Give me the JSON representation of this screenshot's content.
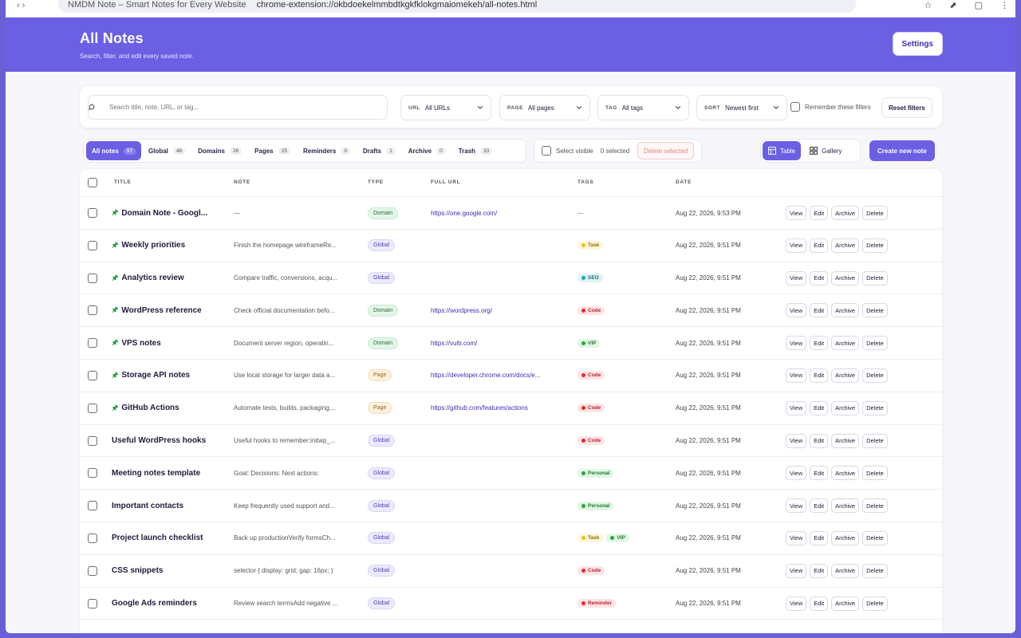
{
  "browser": {
    "tab_title": "NMDM Note – Smart Notes for Every Website",
    "url": "chrome-extension://okbdoekelmmbdtkgkfklokgmaiomekeh/all-notes.html"
  },
  "header": {
    "title": "All Notes",
    "subtitle": "Search, filter, and edit every saved note.",
    "settings_label": "Settings"
  },
  "filters": {
    "search_placeholder": "Search title, note, URL, or tag...",
    "url": {
      "label": "URL",
      "value": "All URLs"
    },
    "page": {
      "label": "PAGE",
      "value": "All pages"
    },
    "tag": {
      "label": "TAG",
      "value": "All tags"
    },
    "sort": {
      "label": "SORT",
      "value": "Newest first"
    },
    "remember_label": "Remember these filters",
    "reset_label": "Reset filters"
  },
  "tabs": [
    {
      "label": "All notes",
      "count": "97",
      "active": true
    },
    {
      "label": "Global",
      "count": "46"
    },
    {
      "label": "Domains",
      "count": "26"
    },
    {
      "label": "Pages",
      "count": "25"
    },
    {
      "label": "Reminders",
      "count": "0"
    },
    {
      "label": "Drafts",
      "count": "1"
    },
    {
      "label": "Archive",
      "count": "0"
    },
    {
      "label": "Trash",
      "count": "33"
    }
  ],
  "bulk": {
    "select_visible_label": "Select visible",
    "selected_count": "0 selected",
    "delete_selected_label": "Delete selected"
  },
  "view": {
    "table_label": "Table",
    "gallery_label": "Gallery",
    "active": "table"
  },
  "create_label": "Create new note",
  "columns": {
    "title": "TITLE",
    "note": "NOTE",
    "type": "TYPE",
    "full_url": "FULL URL",
    "tags": "TAGS",
    "date": "DATE"
  },
  "actions": {
    "view": "View",
    "edit": "Edit",
    "archive": "Archive",
    "delete": "Delete"
  },
  "tag_colors": {
    "Task": {
      "bg": "#fdf6d8",
      "fg": "#8a6d0a",
      "dot": "#e8c21c"
    },
    "SEO": {
      "bg": "#dff3f5",
      "fg": "#1e6e78",
      "dot": "#1aa9b8"
    },
    "Code": {
      "bg": "#fde4e4",
      "fg": "#b8232b",
      "dot": "#e12a33"
    },
    "VIP": {
      "bg": "#e1f6e3",
      "fg": "#1f7a2c",
      "dot": "#22a83a"
    },
    "Personal": {
      "bg": "#e1f6e3",
      "fg": "#1f7a2c",
      "dot": "#22a83a"
    },
    "Reminder": {
      "bg": "#fde4e4",
      "fg": "#b8232b",
      "dot": "#e12a33"
    }
  },
  "rows": [
    {
      "title": "Domain Note - Googl...",
      "pinned": true,
      "note": "—",
      "type": "Domain",
      "url": "https://one.google.com/",
      "tags": [],
      "date": "Aug 22, 2026, 9:53 PM"
    },
    {
      "title": "Weekly priorities",
      "pinned": true,
      "note": "Finish the homepage wireframeRe...",
      "type": "Global",
      "url": "",
      "tags": [
        "Task"
      ],
      "date": "Aug 22, 2026, 9:51 PM"
    },
    {
      "title": "Analytics review",
      "pinned": true,
      "note": "Compare traffic, conversions, acqu...",
      "type": "Global",
      "url": "",
      "tags": [
        "SEO"
      ],
      "date": "Aug 22, 2026, 9:51 PM"
    },
    {
      "title": "WordPress reference",
      "pinned": true,
      "note": "Check official documentation befo...",
      "type": "Domain",
      "url": "https://wordpress.org/",
      "tags": [
        "Code"
      ],
      "date": "Aug 22, 2026, 9:51 PM"
    },
    {
      "title": "VPS notes",
      "pinned": true,
      "note": "Document server region, operatin...",
      "type": "Domain",
      "url": "https://vultr.com/",
      "tags": [
        "VIP"
      ],
      "date": "Aug 22, 2026, 9:51 PM"
    },
    {
      "title": "Storage API notes",
      "pinned": true,
      "note": "Use local storage for larger data a...",
      "type": "Page",
      "url": "https://developer.chrome.com/docs/e...",
      "tags": [
        "Code"
      ],
      "date": "Aug 22, 2026, 9:51 PM"
    },
    {
      "title": "GitHub Actions",
      "pinned": true,
      "note": "Automate tests, builds, packaging,...",
      "type": "Page",
      "url": "https://github.com/features/actions",
      "tags": [
        "Code"
      ],
      "date": "Aug 22, 2026, 9:51 PM"
    },
    {
      "title": "Useful WordPress hooks",
      "pinned": false,
      "note": "Useful hooks to remember:initwp_...",
      "type": "Global",
      "url": "",
      "tags": [
        "Code"
      ],
      "date": "Aug 22, 2026, 9:51 PM"
    },
    {
      "title": "Meeting notes template",
      "pinned": false,
      "note": "Goal: Decisions: Next actions:",
      "type": "Global",
      "url": "",
      "tags": [
        "Personal"
      ],
      "date": "Aug 22, 2026, 9:51 PM"
    },
    {
      "title": "Important contacts",
      "pinned": false,
      "note": "Keep frequently used support and...",
      "type": "Global",
      "url": "",
      "tags": [
        "Personal"
      ],
      "date": "Aug 22, 2026, 9:51 PM"
    },
    {
      "title": "Project launch checklist",
      "pinned": false,
      "note": "Back up productionVerify formsCh...",
      "type": "Global",
      "url": "",
      "tags": [
        "Task",
        "VIP"
      ],
      "date": "Aug 22, 2026, 9:51 PM"
    },
    {
      "title": "CSS snippets",
      "pinned": false,
      "note": "selector { display: grid; gap: 16px; }",
      "type": "Global",
      "url": "",
      "tags": [
        "Code"
      ],
      "date": "Aug 22, 2026, 9:51 PM"
    },
    {
      "title": "Google Ads reminders",
      "pinned": false,
      "note": "Review search termsAdd negative ...",
      "type": "Global",
      "url": "",
      "tags": [
        "Reminder"
      ],
      "date": "Aug 22, 2026, 9:51 PM"
    }
  ]
}
